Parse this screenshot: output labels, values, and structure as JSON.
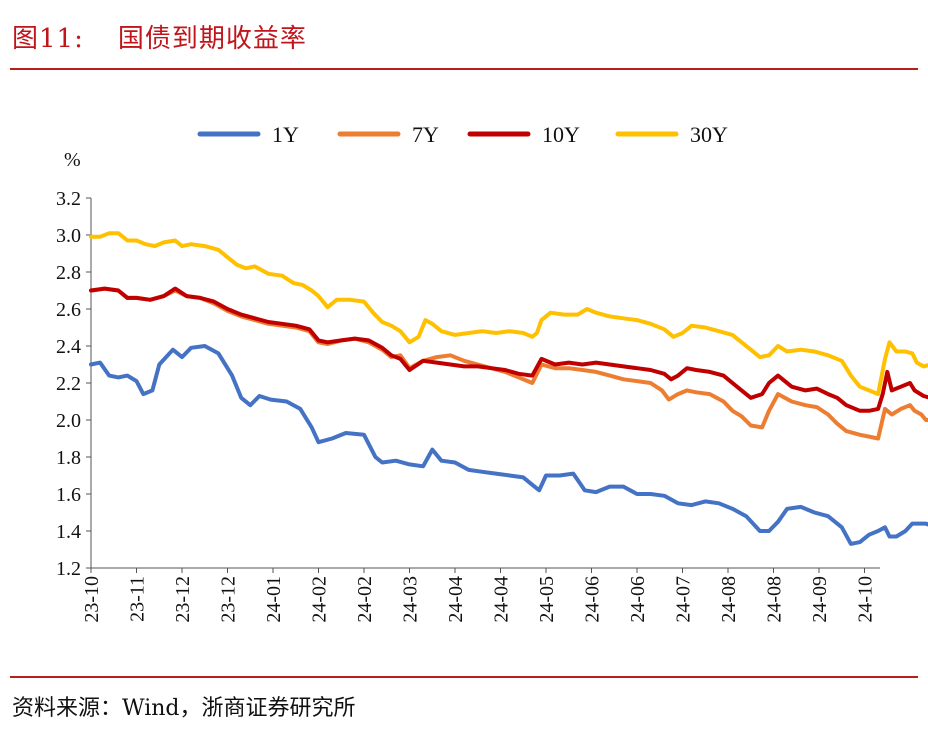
{
  "header": {
    "figure_label": "图11:",
    "title": "国债到期收益率"
  },
  "footer": {
    "source": "资料来源：Wind，浙商证券研究所"
  },
  "colors": {
    "1Y": "#4472c4",
    "7Y": "#ed7d31",
    "10Y": "#c00000",
    "30Y": "#ffc000",
    "rule": "#b5201f"
  },
  "chart_data": {
    "type": "line",
    "ylabel": "%",
    "ylim": [
      1.2,
      3.2
    ],
    "yticks": [
      "1.2",
      "1.4",
      "1.6",
      "1.8",
      "2.0",
      "2.2",
      "2.4",
      "2.6",
      "2.8",
      "3.0",
      "3.2"
    ],
    "xticks": [
      "23-10",
      "23-11",
      "23-12",
      "23-12",
      "24-01",
      "24-02",
      "24-02",
      "24-03",
      "24-04",
      "24-04",
      "24-05",
      "24-06",
      "24-06",
      "24-07",
      "24-08",
      "24-08",
      "24-09",
      "24-10"
    ],
    "legend": "top",
    "grid": false,
    "x_range": [
      0,
      17.8
    ],
    "series": [
      {
        "name": "1Y",
        "color": "#4472c4",
        "points": [
          [
            0,
            2.3
          ],
          [
            0.2,
            2.31
          ],
          [
            0.4,
            2.24
          ],
          [
            0.6,
            2.23
          ],
          [
            0.8,
            2.24
          ],
          [
            1.0,
            2.21
          ],
          [
            1.15,
            2.14
          ],
          [
            1.35,
            2.16
          ],
          [
            1.5,
            2.3
          ],
          [
            1.8,
            2.38
          ],
          [
            2.0,
            2.34
          ],
          [
            2.2,
            2.39
          ],
          [
            2.5,
            2.4
          ],
          [
            2.8,
            2.36
          ],
          [
            3.1,
            2.24
          ],
          [
            3.3,
            2.12
          ],
          [
            3.5,
            2.08
          ],
          [
            3.7,
            2.13
          ],
          [
            3.95,
            2.11
          ],
          [
            4.3,
            2.1
          ],
          [
            4.6,
            2.06
          ],
          [
            4.85,
            1.96
          ],
          [
            5.0,
            1.88
          ],
          [
            5.3,
            1.9
          ],
          [
            5.6,
            1.93
          ],
          [
            6.0,
            1.92
          ],
          [
            6.25,
            1.8
          ],
          [
            6.4,
            1.77
          ],
          [
            6.7,
            1.78
          ],
          [
            7.0,
            1.76
          ],
          [
            7.3,
            1.75
          ],
          [
            7.5,
            1.84
          ],
          [
            7.7,
            1.78
          ],
          [
            8.0,
            1.77
          ],
          [
            8.3,
            1.73
          ],
          [
            8.6,
            1.72
          ],
          [
            8.9,
            1.71
          ],
          [
            9.2,
            1.7
          ],
          [
            9.5,
            1.69
          ],
          [
            9.7,
            1.65
          ],
          [
            9.85,
            1.62
          ],
          [
            10.0,
            1.7
          ],
          [
            10.3,
            1.7
          ],
          [
            10.6,
            1.71
          ],
          [
            10.85,
            1.62
          ],
          [
            11.1,
            1.61
          ],
          [
            11.4,
            1.64
          ],
          [
            11.7,
            1.64
          ],
          [
            12.0,
            1.6
          ],
          [
            12.3,
            1.6
          ],
          [
            12.6,
            1.59
          ],
          [
            12.9,
            1.55
          ],
          [
            13.2,
            1.54
          ],
          [
            13.5,
            1.56
          ],
          [
            13.8,
            1.55
          ],
          [
            14.1,
            1.52
          ],
          [
            14.4,
            1.48
          ],
          [
            14.7,
            1.4
          ],
          [
            14.9,
            1.4
          ],
          [
            15.1,
            1.45
          ],
          [
            15.3,
            1.52
          ],
          [
            15.6,
            1.53
          ],
          [
            15.9,
            1.5
          ],
          [
            16.2,
            1.48
          ],
          [
            16.5,
            1.42
          ],
          [
            16.7,
            1.33
          ],
          [
            16.9,
            1.34
          ],
          [
            17.1,
            1.38
          ],
          [
            17.3,
            1.4
          ],
          [
            17.45,
            1.42
          ],
          [
            17.55,
            1.37
          ],
          [
            17.7,
            1.37
          ],
          [
            17.9,
            1.4
          ],
          [
            18.05,
            1.44
          ],
          [
            18.2,
            1.44
          ],
          [
            18.35,
            1.44
          ],
          [
            18.45,
            1.43
          ]
        ]
      },
      {
        "name": "7Y",
        "color": "#ed7d31",
        "points": [
          [
            0,
            2.7
          ],
          [
            0.3,
            2.71
          ],
          [
            0.6,
            2.7
          ],
          [
            0.8,
            2.66
          ],
          [
            1.0,
            2.66
          ],
          [
            1.3,
            2.65
          ],
          [
            1.6,
            2.67
          ],
          [
            1.85,
            2.7
          ],
          [
            2.1,
            2.67
          ],
          [
            2.4,
            2.66
          ],
          [
            2.7,
            2.63
          ],
          [
            3.0,
            2.59
          ],
          [
            3.3,
            2.56
          ],
          [
            3.6,
            2.54
          ],
          [
            3.9,
            2.52
          ],
          [
            4.2,
            2.51
          ],
          [
            4.5,
            2.5
          ],
          [
            4.8,
            2.48
          ],
          [
            5.0,
            2.42
          ],
          [
            5.2,
            2.41
          ],
          [
            5.5,
            2.43
          ],
          [
            5.8,
            2.44
          ],
          [
            6.1,
            2.42
          ],
          [
            6.4,
            2.38
          ],
          [
            6.6,
            2.34
          ],
          [
            6.8,
            2.35
          ],
          [
            7.0,
            2.28
          ],
          [
            7.3,
            2.32
          ],
          [
            7.6,
            2.34
          ],
          [
            7.9,
            2.35
          ],
          [
            8.2,
            2.32
          ],
          [
            8.5,
            2.3
          ],
          [
            8.8,
            2.28
          ],
          [
            9.1,
            2.26
          ],
          [
            9.4,
            2.23
          ],
          [
            9.7,
            2.2
          ],
          [
            9.9,
            2.3
          ],
          [
            10.2,
            2.28
          ],
          [
            10.5,
            2.28
          ],
          [
            10.8,
            2.27
          ],
          [
            11.1,
            2.26
          ],
          [
            11.4,
            2.24
          ],
          [
            11.7,
            2.22
          ],
          [
            12.0,
            2.21
          ],
          [
            12.3,
            2.2
          ],
          [
            12.55,
            2.16
          ],
          [
            12.7,
            2.11
          ],
          [
            12.9,
            2.14
          ],
          [
            13.1,
            2.16
          ],
          [
            13.3,
            2.15
          ],
          [
            13.6,
            2.14
          ],
          [
            13.9,
            2.1
          ],
          [
            14.1,
            2.05
          ],
          [
            14.3,
            2.02
          ],
          [
            14.5,
            1.97
          ],
          [
            14.75,
            1.96
          ],
          [
            14.9,
            2.05
          ],
          [
            15.1,
            2.14
          ],
          [
            15.4,
            2.1
          ],
          [
            15.7,
            2.08
          ],
          [
            15.95,
            2.07
          ],
          [
            16.2,
            2.03
          ],
          [
            16.4,
            1.98
          ],
          [
            16.6,
            1.94
          ],
          [
            16.9,
            1.92
          ],
          [
            17.1,
            1.91
          ],
          [
            17.3,
            1.9
          ],
          [
            17.45,
            2.06
          ],
          [
            17.6,
            2.03
          ],
          [
            17.8,
            2.06
          ],
          [
            18.0,
            2.08
          ],
          [
            18.1,
            2.05
          ],
          [
            18.25,
            2.03
          ],
          [
            18.35,
            2.0
          ],
          [
            18.45,
            2.0
          ]
        ]
      },
      {
        "name": "10Y",
        "color": "#c00000",
        "points": [
          [
            0,
            2.7
          ],
          [
            0.3,
            2.71
          ],
          [
            0.6,
            2.7
          ],
          [
            0.8,
            2.66
          ],
          [
            1.0,
            2.66
          ],
          [
            1.3,
            2.65
          ],
          [
            1.6,
            2.67
          ],
          [
            1.85,
            2.71
          ],
          [
            2.1,
            2.67
          ],
          [
            2.4,
            2.66
          ],
          [
            2.7,
            2.64
          ],
          [
            3.0,
            2.6
          ],
          [
            3.3,
            2.57
          ],
          [
            3.6,
            2.55
          ],
          [
            3.9,
            2.53
          ],
          [
            4.2,
            2.52
          ],
          [
            4.5,
            2.51
          ],
          [
            4.8,
            2.49
          ],
          [
            5.0,
            2.43
          ],
          [
            5.2,
            2.42
          ],
          [
            5.5,
            2.43
          ],
          [
            5.8,
            2.44
          ],
          [
            6.1,
            2.43
          ],
          [
            6.4,
            2.39
          ],
          [
            6.6,
            2.35
          ],
          [
            6.8,
            2.33
          ],
          [
            7.0,
            2.27
          ],
          [
            7.3,
            2.32
          ],
          [
            7.6,
            2.31
          ],
          [
            7.9,
            2.3
          ],
          [
            8.2,
            2.29
          ],
          [
            8.5,
            2.29
          ],
          [
            8.8,
            2.28
          ],
          [
            9.1,
            2.27
          ],
          [
            9.4,
            2.25
          ],
          [
            9.7,
            2.24
          ],
          [
            9.9,
            2.33
          ],
          [
            10.2,
            2.3
          ],
          [
            10.5,
            2.31
          ],
          [
            10.8,
            2.3
          ],
          [
            11.1,
            2.31
          ],
          [
            11.4,
            2.3
          ],
          [
            11.7,
            2.29
          ],
          [
            12.0,
            2.28
          ],
          [
            12.3,
            2.27
          ],
          [
            12.6,
            2.25
          ],
          [
            12.75,
            2.22
          ],
          [
            12.9,
            2.24
          ],
          [
            13.1,
            2.28
          ],
          [
            13.3,
            2.27
          ],
          [
            13.6,
            2.26
          ],
          [
            13.9,
            2.24
          ],
          [
            14.1,
            2.2
          ],
          [
            14.3,
            2.16
          ],
          [
            14.5,
            2.12
          ],
          [
            14.75,
            2.14
          ],
          [
            14.9,
            2.2
          ],
          [
            15.1,
            2.24
          ],
          [
            15.4,
            2.18
          ],
          [
            15.7,
            2.16
          ],
          [
            15.95,
            2.17
          ],
          [
            16.2,
            2.14
          ],
          [
            16.4,
            2.12
          ],
          [
            16.6,
            2.08
          ],
          [
            16.9,
            2.05
          ],
          [
            17.1,
            2.05
          ],
          [
            17.3,
            2.06
          ],
          [
            17.4,
            2.14
          ],
          [
            17.5,
            2.26
          ],
          [
            17.6,
            2.16
          ],
          [
            17.8,
            2.18
          ],
          [
            18.0,
            2.2
          ],
          [
            18.1,
            2.16
          ],
          [
            18.3,
            2.13
          ],
          [
            18.45,
            2.12
          ]
        ]
      },
      {
        "name": "30Y",
        "color": "#ffc000",
        "points": [
          [
            0,
            2.99
          ],
          [
            0.2,
            2.99
          ],
          [
            0.4,
            3.01
          ],
          [
            0.6,
            3.01
          ],
          [
            0.8,
            2.97
          ],
          [
            1.0,
            2.97
          ],
          [
            1.2,
            2.95
          ],
          [
            1.4,
            2.94
          ],
          [
            1.6,
            2.96
          ],
          [
            1.85,
            2.97
          ],
          [
            2.0,
            2.94
          ],
          [
            2.2,
            2.95
          ],
          [
            2.5,
            2.94
          ],
          [
            2.8,
            2.92
          ],
          [
            3.0,
            2.88
          ],
          [
            3.2,
            2.84
          ],
          [
            3.4,
            2.82
          ],
          [
            3.6,
            2.83
          ],
          [
            3.9,
            2.79
          ],
          [
            4.2,
            2.78
          ],
          [
            4.45,
            2.74
          ],
          [
            4.65,
            2.73
          ],
          [
            4.85,
            2.7
          ],
          [
            5.0,
            2.67
          ],
          [
            5.2,
            2.61
          ],
          [
            5.4,
            2.65
          ],
          [
            5.7,
            2.65
          ],
          [
            6.0,
            2.64
          ],
          [
            6.2,
            2.58
          ],
          [
            6.4,
            2.53
          ],
          [
            6.6,
            2.51
          ],
          [
            6.8,
            2.48
          ],
          [
            7.0,
            2.42
          ],
          [
            7.2,
            2.45
          ],
          [
            7.35,
            2.54
          ],
          [
            7.5,
            2.52
          ],
          [
            7.7,
            2.48
          ],
          [
            8.0,
            2.46
          ],
          [
            8.3,
            2.47
          ],
          [
            8.6,
            2.48
          ],
          [
            8.9,
            2.47
          ],
          [
            9.2,
            2.48
          ],
          [
            9.5,
            2.47
          ],
          [
            9.7,
            2.45
          ],
          [
            9.8,
            2.47
          ],
          [
            9.9,
            2.54
          ],
          [
            10.1,
            2.58
          ],
          [
            10.4,
            2.57
          ],
          [
            10.7,
            2.57
          ],
          [
            10.9,
            2.6
          ],
          [
            11.1,
            2.58
          ],
          [
            11.4,
            2.56
          ],
          [
            11.7,
            2.55
          ],
          [
            12.0,
            2.54
          ],
          [
            12.3,
            2.52
          ],
          [
            12.6,
            2.49
          ],
          [
            12.8,
            2.45
          ],
          [
            13.0,
            2.47
          ],
          [
            13.2,
            2.51
          ],
          [
            13.5,
            2.5
          ],
          [
            13.8,
            2.48
          ],
          [
            14.1,
            2.46
          ],
          [
            14.3,
            2.42
          ],
          [
            14.5,
            2.38
          ],
          [
            14.7,
            2.34
          ],
          [
            14.9,
            2.35
          ],
          [
            15.1,
            2.4
          ],
          [
            15.3,
            2.37
          ],
          [
            15.6,
            2.38
          ],
          [
            15.9,
            2.37
          ],
          [
            16.2,
            2.35
          ],
          [
            16.5,
            2.32
          ],
          [
            16.7,
            2.24
          ],
          [
            16.9,
            2.18
          ],
          [
            17.1,
            2.16
          ],
          [
            17.3,
            2.14
          ],
          [
            17.45,
            2.33
          ],
          [
            17.55,
            2.42
          ],
          [
            17.7,
            2.37
          ],
          [
            17.9,
            2.37
          ],
          [
            18.05,
            2.36
          ],
          [
            18.15,
            2.31
          ],
          [
            18.3,
            2.29
          ],
          [
            18.45,
            2.3
          ]
        ]
      }
    ]
  }
}
